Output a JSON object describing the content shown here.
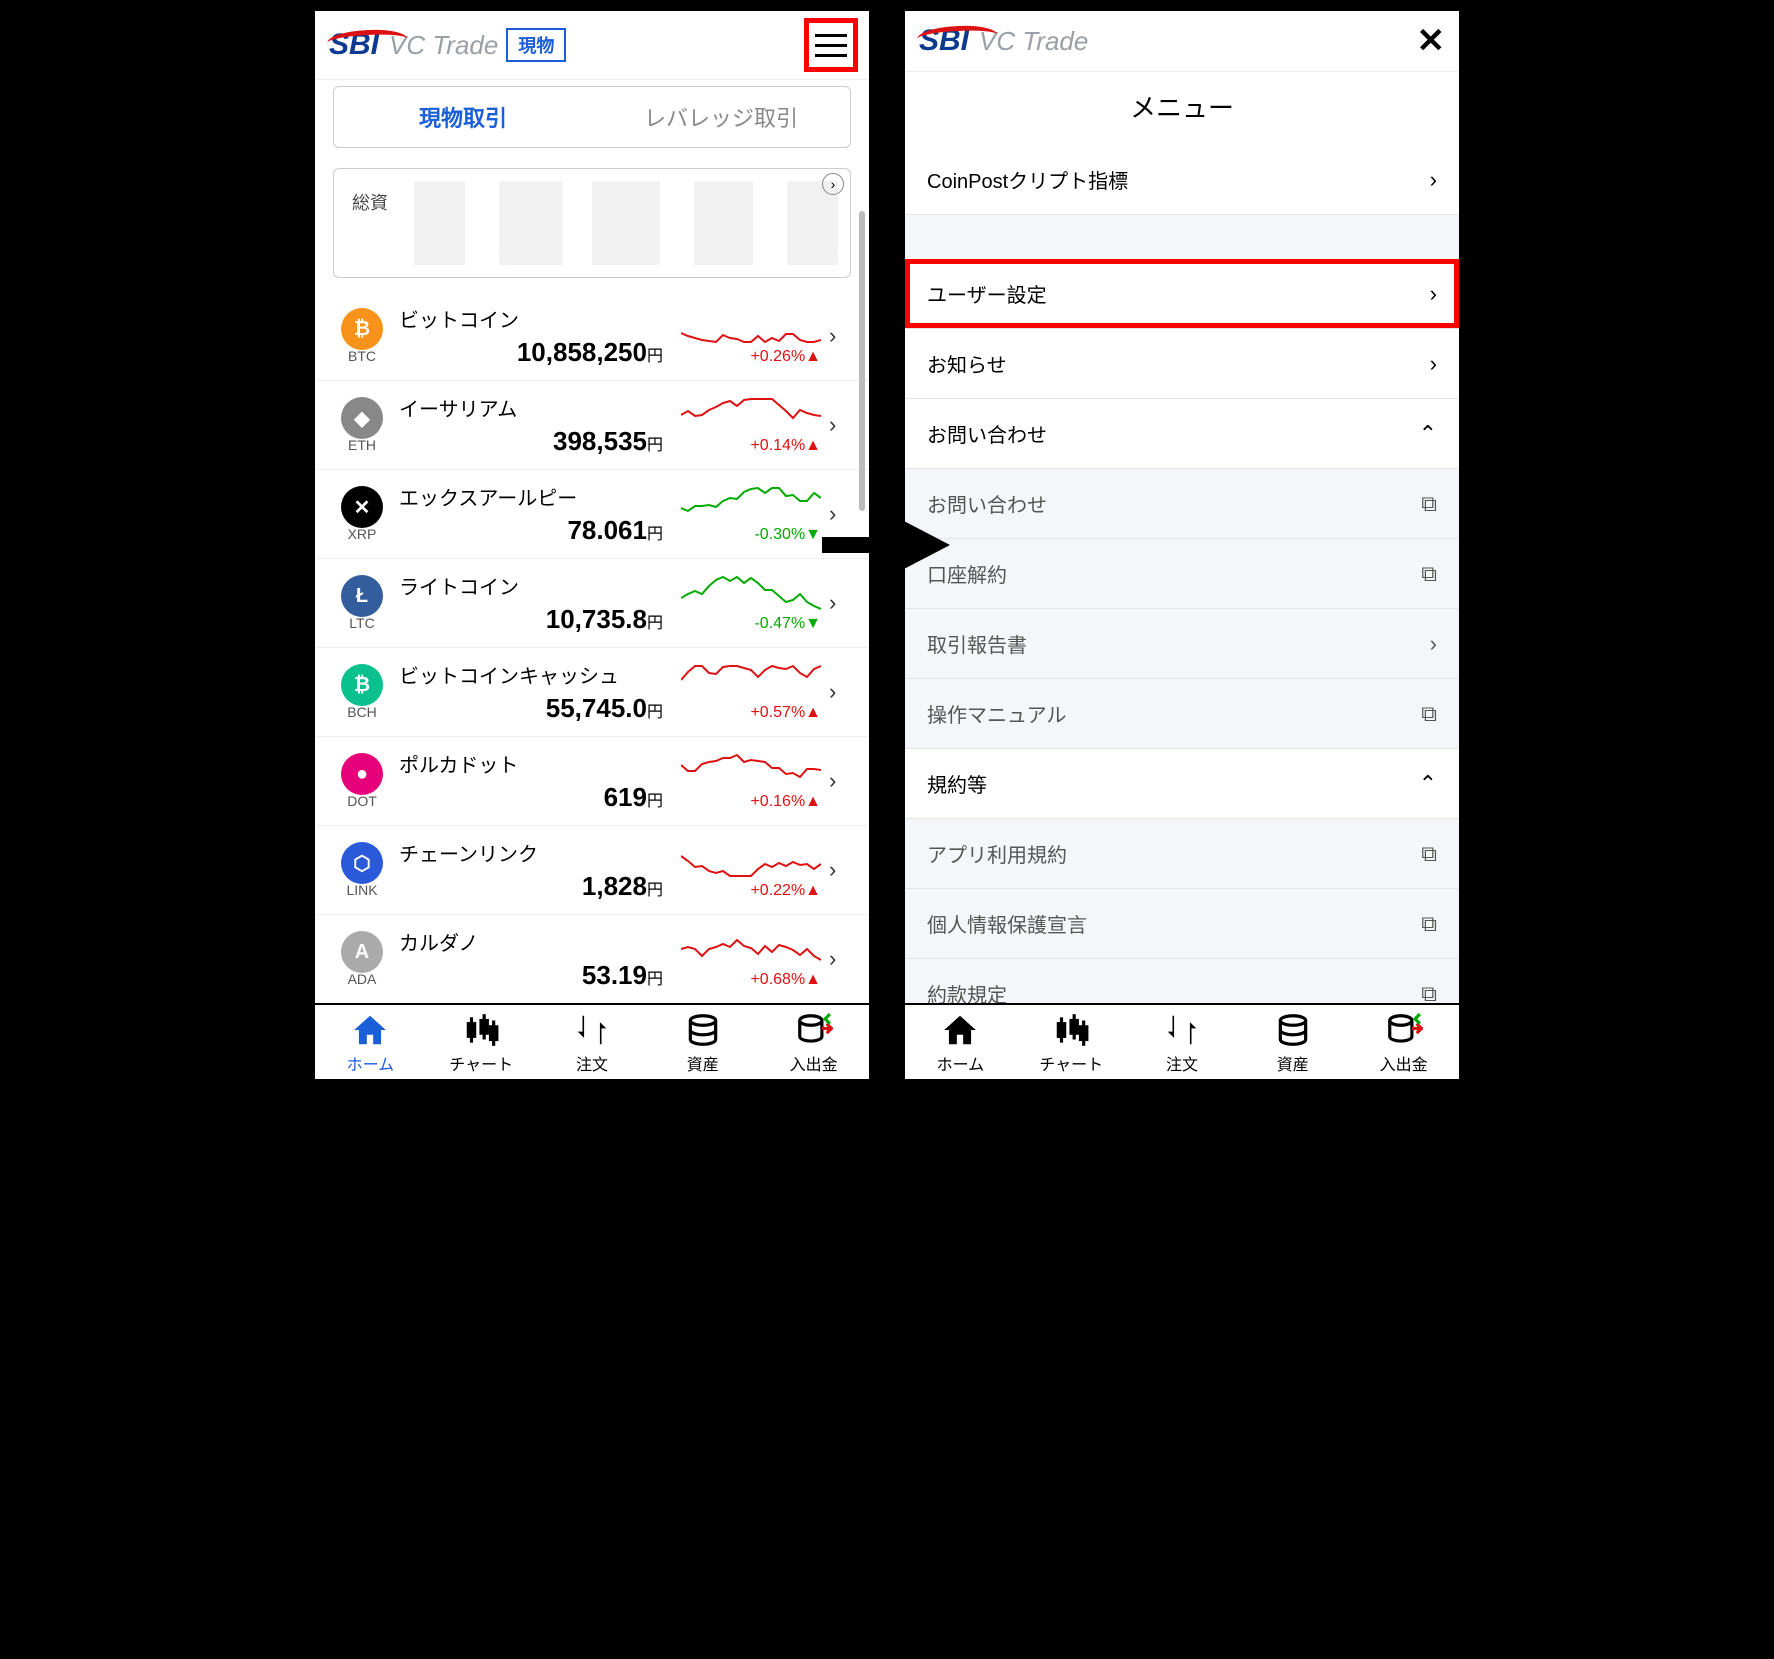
{
  "brand": {
    "sbi": "SBI",
    "vc": "VC Trade",
    "badge": "現物"
  },
  "left": {
    "tabs": {
      "spot": "現物取引",
      "leverage": "レバレッジ取引"
    },
    "asset_label": "総資",
    "yen": "円",
    "coins": [
      {
        "name": "ビットコイン",
        "sym": "BTC",
        "price": "10,858,250",
        "pct": "+0.26%",
        "dir": "up",
        "ico": "₿",
        "bg": "#f7931a"
      },
      {
        "name": "イーサリアム",
        "sym": "ETH",
        "price": "398,535",
        "pct": "+0.14%",
        "dir": "up",
        "ico": "◆",
        "bg": "#888"
      },
      {
        "name": "エックスアールピー",
        "sym": "XRP",
        "price": "78.061",
        "pct": "-0.30%",
        "dir": "dn",
        "ico": "✕",
        "bg": "#000"
      },
      {
        "name": "ライトコイン",
        "sym": "LTC",
        "price": "10,735.8",
        "pct": "-0.47%",
        "dir": "dn",
        "ico": "Ł",
        "bg": "#345d9d"
      },
      {
        "name": "ビットコインキャッシュ",
        "sym": "BCH",
        "price": "55,745.0",
        "pct": "+0.57%",
        "dir": "up",
        "ico": "₿",
        "bg": "#0ac18e"
      },
      {
        "name": "ポルカドット",
        "sym": "DOT",
        "price": "619",
        "pct": "+0.16%",
        "dir": "up",
        "ico": "●",
        "bg": "#e6007a"
      },
      {
        "name": "チェーンリンク",
        "sym": "LINK",
        "price": "1,828",
        "pct": "+0.22%",
        "dir": "up",
        "ico": "⬡",
        "bg": "#2a5ada"
      },
      {
        "name": "カルダノ",
        "sym": "ADA",
        "price": "53.19",
        "pct": "+0.68%",
        "dir": "up",
        "ico": "A",
        "bg": "#aaa"
      }
    ]
  },
  "right": {
    "title": "メニュー",
    "items": [
      {
        "label": "CoinPostクリプト指標",
        "icon": "chev",
        "sub": false
      },
      {
        "gap": true
      },
      {
        "label": "ユーザー設定",
        "icon": "chev",
        "sub": false,
        "hl": true
      },
      {
        "label": "お知らせ",
        "icon": "chev",
        "sub": false
      },
      {
        "label": "お問い合わせ",
        "icon": "up",
        "sub": false
      },
      {
        "label": "お問い合わせ",
        "icon": "ext",
        "sub": true
      },
      {
        "label": "口座解約",
        "icon": "ext",
        "sub": true
      },
      {
        "label": "取引報告書",
        "icon": "chev",
        "sub": true
      },
      {
        "label": "操作マニュアル",
        "icon": "ext",
        "sub": true
      },
      {
        "label": "規約等",
        "icon": "up",
        "sub": false
      },
      {
        "label": "アプリ利用規約",
        "icon": "ext",
        "sub": true
      },
      {
        "label": "個人情報保護宣言",
        "icon": "ext",
        "sub": true
      },
      {
        "label": "約款規定",
        "icon": "ext",
        "sub": true
      }
    ]
  },
  "nav": [
    {
      "label": "ホーム",
      "icon": "home"
    },
    {
      "label": "チャート",
      "icon": "chart"
    },
    {
      "label": "注文",
      "icon": "order"
    },
    {
      "label": "資産",
      "icon": "asset"
    },
    {
      "label": "入出金",
      "icon": "io"
    }
  ],
  "colors": {
    "up": "#d11",
    "dn": "#0a0"
  }
}
